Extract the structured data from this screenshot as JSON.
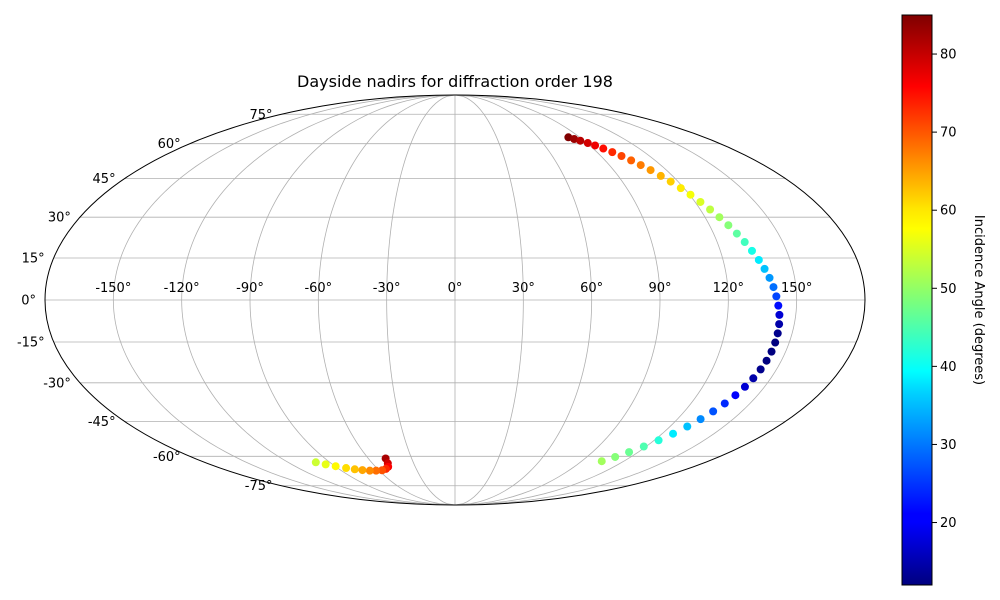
{
  "chart_data": {
    "type": "scatter",
    "projection": "mollweide",
    "title": "Dayside nadirs for diffraction order 198",
    "grid": true,
    "longitude_ticks": [
      -150,
      -120,
      -90,
      -60,
      -30,
      0,
      30,
      60,
      90,
      120,
      150
    ],
    "longitude_tick_labels": [
      "-150°",
      "-120°",
      "-90°",
      "-60°",
      "-30°",
      "0°",
      "30°",
      "60°",
      "90°",
      "120°",
      "150°"
    ],
    "latitude_ticks": [
      75,
      60,
      45,
      30,
      15,
      0,
      -15,
      -30,
      -45,
      -60,
      -75
    ],
    "latitude_tick_labels": [
      "75°",
      "60°",
      "45°",
      "30°",
      "15°",
      "0°",
      "-15°",
      "-30°",
      "-45°",
      "-60°",
      "-75°"
    ],
    "colorbar": {
      "label": "Incidence Angle (degrees)",
      "min": 12,
      "max": 85,
      "ticks": [
        20,
        30,
        40,
        50,
        60,
        70,
        80
      ],
      "tick_labels": [
        "20",
        "30",
        "40",
        "50",
        "60",
        "70",
        "80"
      ],
      "colormap": "jet"
    },
    "points": [
      {
        "lon": 81.8,
        "lat": 63.0,
        "incidence": 85
      },
      {
        "lon": 84.5,
        "lat": 62.2,
        "incidence": 83
      },
      {
        "lon": 87.4,
        "lat": 61.4,
        "incidence": 81
      },
      {
        "lon": 90.6,
        "lat": 60.3,
        "incidence": 79
      },
      {
        "lon": 93.6,
        "lat": 59.2,
        "incidence": 77
      },
      {
        "lon": 96.6,
        "lat": 57.8,
        "incidence": 75
      },
      {
        "lon": 99.7,
        "lat": 56.2,
        "incidence": 73
      },
      {
        "lon": 102.7,
        "lat": 54.5,
        "incidence": 71
      },
      {
        "lon": 105.6,
        "lat": 52.6,
        "incidence": 69
      },
      {
        "lon": 108.3,
        "lat": 50.6,
        "incidence": 67
      },
      {
        "lon": 111.0,
        "lat": 48.5,
        "incidence": 65
      },
      {
        "lon": 113.5,
        "lat": 46.1,
        "incidence": 63
      },
      {
        "lon": 116.0,
        "lat": 43.8,
        "incidence": 61
      },
      {
        "lon": 118.3,
        "lat": 41.2,
        "incidence": 59
      },
      {
        "lon": 120.5,
        "lat": 38.6,
        "incidence": 57
      },
      {
        "lon": 122.7,
        "lat": 35.8,
        "incidence": 55
      },
      {
        "lon": 124.8,
        "lat": 32.9,
        "incidence": 53
      },
      {
        "lon": 126.9,
        "lat": 30.0,
        "incidence": 51
      },
      {
        "lon": 128.9,
        "lat": 27.0,
        "incidence": 49
      },
      {
        "lon": 130.8,
        "lat": 23.9,
        "incidence": 46
      },
      {
        "lon": 132.6,
        "lat": 20.8,
        "incidence": 44
      },
      {
        "lon": 134.3,
        "lat": 17.6,
        "incidence": 41
      },
      {
        "lon": 136.0,
        "lat": 14.3,
        "incidence": 38
      },
      {
        "lon": 137.5,
        "lat": 11.1,
        "incidence": 35
      },
      {
        "lon": 138.9,
        "lat": 7.9,
        "incidence": 32
      },
      {
        "lon": 140.1,
        "lat": 4.6,
        "incidence": 29
      },
      {
        "lon": 141.1,
        "lat": 1.3,
        "incidence": 26
      },
      {
        "lon": 142.0,
        "lat": -2.0,
        "incidence": 22
      },
      {
        "lon": 142.8,
        "lat": -5.3,
        "incidence": 18
      },
      {
        "lon": 143.3,
        "lat": -8.6,
        "incidence": 15
      },
      {
        "lon": 143.6,
        "lat": -11.9,
        "incidence": 13
      },
      {
        "lon": 143.7,
        "lat": -15.2,
        "incidence": 12
      },
      {
        "lon": 143.6,
        "lat": -18.5,
        "incidence": 12
      },
      {
        "lon": 143.2,
        "lat": -21.8,
        "incidence": 12
      },
      {
        "lon": 142.6,
        "lat": -25.0,
        "incidence": 13
      },
      {
        "lon": 141.7,
        "lat": -28.3,
        "incidence": 15
      },
      {
        "lon": 140.5,
        "lat": -31.5,
        "incidence": 18
      },
      {
        "lon": 139.0,
        "lat": -34.7,
        "incidence": 21
      },
      {
        "lon": 137.2,
        "lat": -37.9,
        "incidence": 24
      },
      {
        "lon": 135.0,
        "lat": -41.0,
        "incidence": 27
      },
      {
        "lon": 132.5,
        "lat": -44.1,
        "incidence": 31
      },
      {
        "lon": 129.6,
        "lat": -47.1,
        "incidence": 35
      },
      {
        "lon": 126.3,
        "lat": -50.1,
        "incidence": 38
      },
      {
        "lon": 122.6,
        "lat": -52.9,
        "incidence": 42
      },
      {
        "lon": 118.5,
        "lat": -55.6,
        "incidence": 45
      },
      {
        "lon": 114.0,
        "lat": -58.1,
        "incidence": 47
      },
      {
        "lon": 109.3,
        "lat": -60.3,
        "incidence": 49
      },
      {
        "lon": 104.3,
        "lat": -62.3,
        "incidence": 51
      },
      {
        "lon": -48.0,
        "lat": -61.0,
        "incidence": 82
      },
      {
        "lon": -48.8,
        "lat": -63.3,
        "incidence": 79
      },
      {
        "lon": -50.5,
        "lat": -65.0,
        "incidence": 76
      },
      {
        "lon": -53.5,
        "lat": -66.0,
        "incidence": 73
      },
      {
        "lon": -57.5,
        "lat": -66.7,
        "incidence": 70
      },
      {
        "lon": -62.5,
        "lat": -66.9,
        "incidence": 68
      },
      {
        "lon": -67.5,
        "lat": -66.9,
        "incidence": 66
      },
      {
        "lon": -72.8,
        "lat": -66.6,
        "incidence": 64
      },
      {
        "lon": -78.0,
        "lat": -66.2,
        "incidence": 62
      },
      {
        "lon": -83.5,
        "lat": -65.6,
        "incidence": 60
      },
      {
        "lon": -89.5,
        "lat": -64.7,
        "incidence": 58
      },
      {
        "lon": -95.0,
        "lat": -63.8,
        "incidence": 56
      },
      {
        "lon": -100.0,
        "lat": -62.8,
        "incidence": 54
      }
    ]
  }
}
